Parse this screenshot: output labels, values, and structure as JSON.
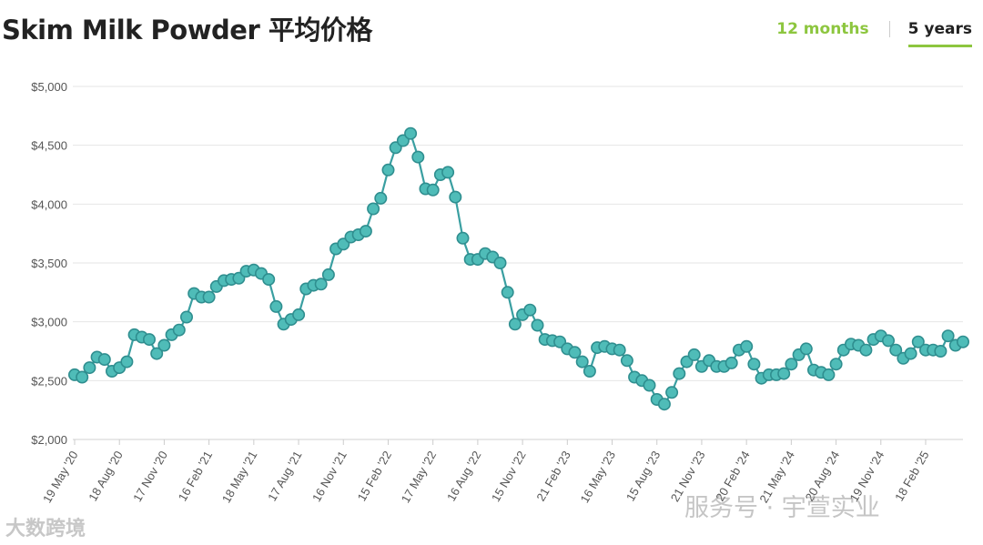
{
  "header": {
    "title": "Skim Milk Powder 平均价格",
    "tabs": [
      {
        "label": "12 months",
        "active": false
      },
      {
        "label": "5 years",
        "active": true
      }
    ]
  },
  "colors": {
    "accent": "#8dc63f",
    "series_line": "#3a9fa1",
    "marker_fill": "#4fbcb8",
    "marker_stroke": "#2f8e8f",
    "grid": "#e6e6e6"
  },
  "watermarks": {
    "left": "大数跨境",
    "right": "服务号 · 宇萱实业"
  },
  "chart_data": {
    "type": "line",
    "title": "Skim Milk Powder 平均价格",
    "xlabel": "",
    "ylabel": "",
    "ylim": [
      2000,
      5000
    ],
    "y_ticks": [
      "$2,000",
      "$2,500",
      "$3,000",
      "$3,500",
      "$4,000",
      "$4,500",
      "$5,000"
    ],
    "y_tick_values": [
      2000,
      2500,
      3000,
      3500,
      4000,
      4500,
      5000
    ],
    "x_tick_labels": [
      "19 May '20",
      "18 Aug '20",
      "17 Nov '20",
      "16 Feb '21",
      "18 May '21",
      "17 Aug '21",
      "16 Nov '21",
      "15 Feb '22",
      "17 May '22",
      "16 Aug '22",
      "15 Nov '22",
      "21 Feb '23",
      "16 May '23",
      "15 Aug '23",
      "21 Nov '23",
      "20 Feb '24",
      "21 May '24",
      "20 Aug '24",
      "19 Nov '24",
      "18 Feb '25"
    ],
    "x_tick_positions": [
      0,
      6,
      12,
      18,
      24,
      30,
      36,
      42,
      48,
      54,
      60,
      66,
      72,
      78,
      84,
      90,
      96,
      102,
      108,
      114
    ],
    "grid": true,
    "legend": "none",
    "series": [
      {
        "values": [
          2550,
          2530,
          2610,
          2700,
          2680,
          2580,
          2610,
          2660,
          2890,
          2870,
          2850,
          2730,
          2800,
          2890,
          2930,
          3040,
          3240,
          3210,
          3210,
          3300,
          3350,
          3360,
          3370,
          3430,
          3440,
          3410,
          3360,
          3130,
          2980,
          3020,
          3060,
          3280,
          3310,
          3320,
          3400,
          3620,
          3660,
          3720,
          3740,
          3770,
          3960,
          4050,
          4290,
          4480,
          4540,
          4600,
          4400,
          4130,
          4120,
          4250,
          4270,
          4060,
          3710,
          3530,
          3530,
          3580,
          3550,
          3500,
          3250,
          2980,
          3060,
          3100,
          2970,
          2850,
          2840,
          2830,
          2770,
          2740,
          2660,
          2580,
          2780,
          2790,
          2770,
          2760,
          2670,
          2530,
          2500,
          2460,
          2340,
          2300,
          2400,
          2560,
          2660,
          2720,
          2620,
          2670,
          2620,
          2620,
          2650,
          2760,
          2790,
          2640,
          2520,
          2550,
          2550,
          2560,
          2640,
          2720,
          2770,
          2590,
          2570,
          2550,
          2640,
          2760,
          2810,
          2800,
          2760,
          2850,
          2880,
          2840,
          2760,
          2690,
          2730,
          2830,
          2760,
          2760,
          2750,
          2880,
          2800,
          2830
        ]
      }
    ]
  }
}
